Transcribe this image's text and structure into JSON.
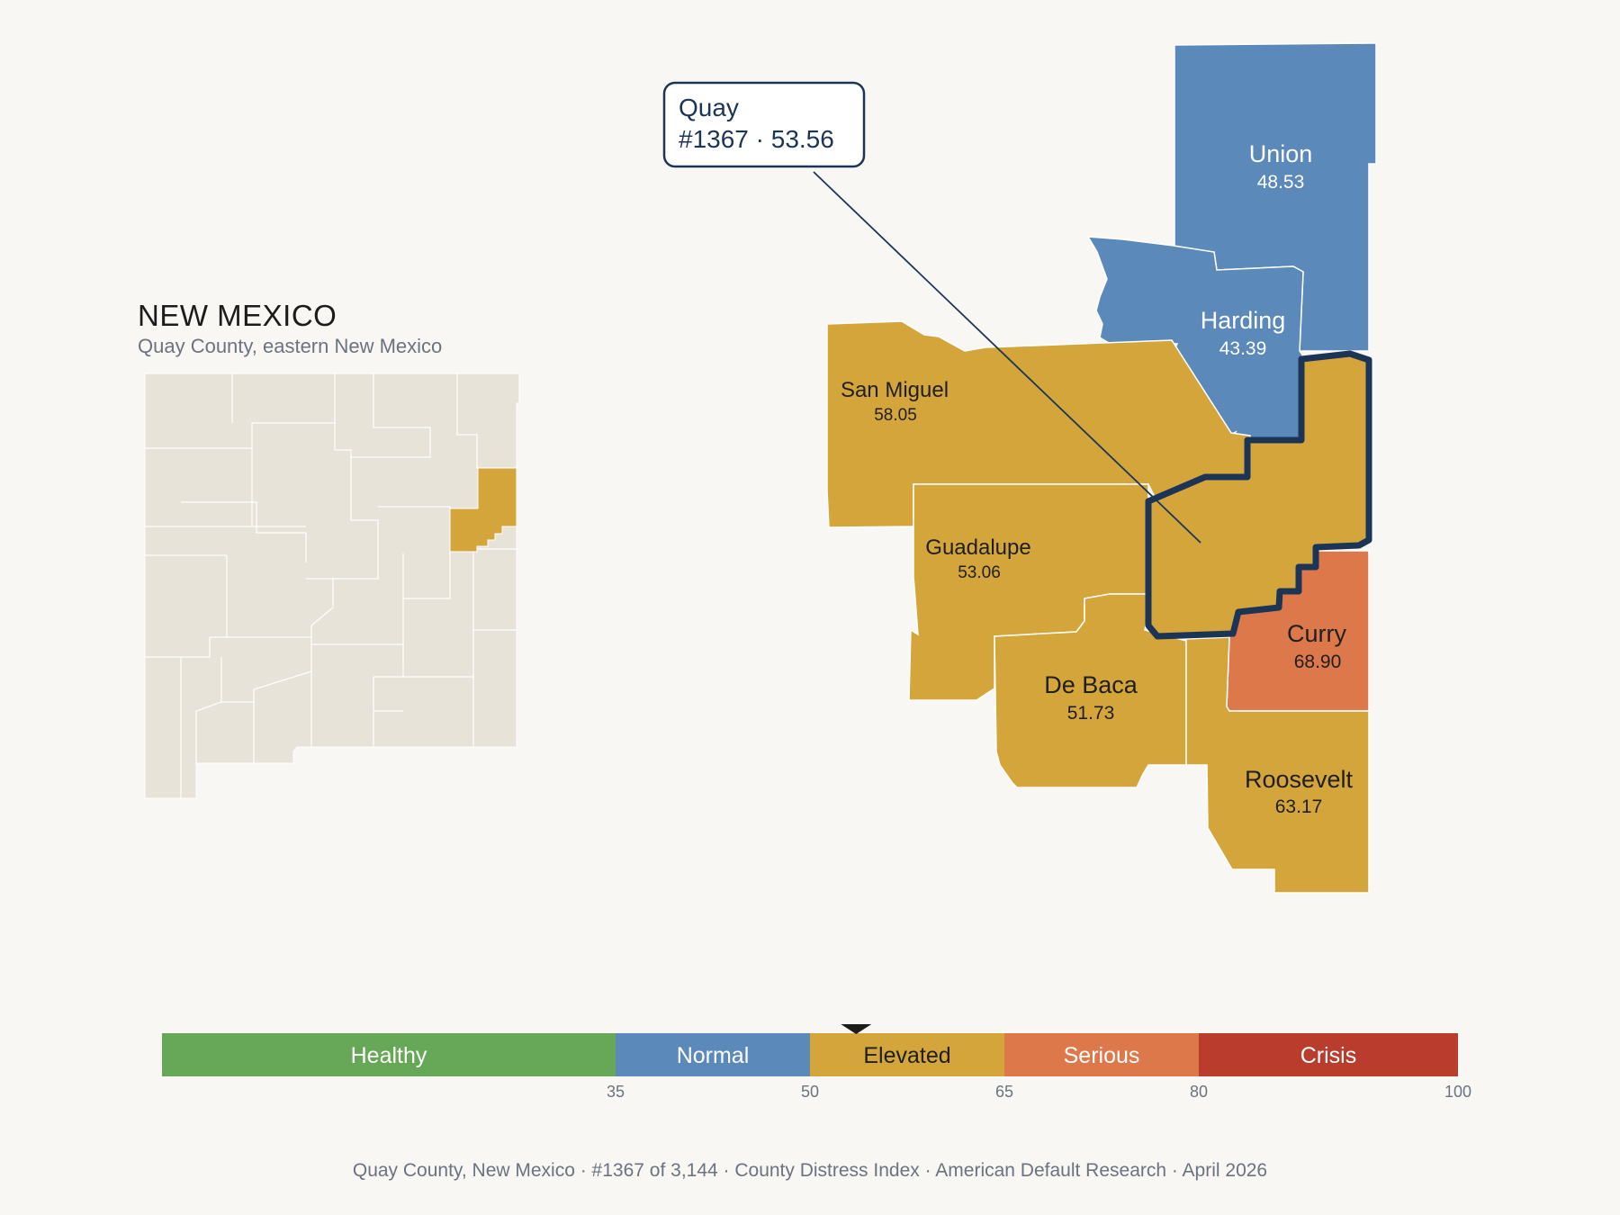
{
  "inset": {
    "title": "NEW MEXICO",
    "subtitle": "Quay County, eastern New Mexico"
  },
  "callout": {
    "county": "Quay",
    "detail": "#1367 · 53.56"
  },
  "counties": [
    {
      "name": "Union",
      "value": "48.53",
      "category": "Normal"
    },
    {
      "name": "Harding",
      "value": "43.39",
      "category": "Normal"
    },
    {
      "name": "San Miguel",
      "value": "58.05",
      "category": "Elevated"
    },
    {
      "name": "Guadalupe",
      "value": "53.06",
      "category": "Elevated"
    },
    {
      "name": "De Baca",
      "value": "51.73",
      "category": "Elevated"
    },
    {
      "name": "Curry",
      "value": "68.90",
      "category": "Serious"
    },
    {
      "name": "Roosevelt",
      "value": "63.17",
      "category": "Elevated"
    },
    {
      "name": "Quay",
      "value": "53.56",
      "category": "Elevated",
      "highlighted": true
    }
  ],
  "legend": {
    "bands": [
      {
        "label": "Healthy",
        "from": 0,
        "to": 35,
        "color": "#67a758"
      },
      {
        "label": "Normal",
        "from": 35,
        "to": 50,
        "color": "#5b89b9"
      },
      {
        "label": "Elevated",
        "from": 50,
        "to": 65,
        "color": "#d4a53a"
      },
      {
        "label": "Serious",
        "from": 65,
        "to": 80,
        "color": "#dd784a"
      },
      {
        "label": "Crisis",
        "from": 80,
        "to": 100,
        "color": "#b93c2c"
      }
    ],
    "ticks": [
      "35",
      "50",
      "65",
      "80",
      "100"
    ],
    "marker_value": 53.56
  },
  "colors": {
    "highlight_outline": "#1c3557",
    "inset_base": "#e8e3d9"
  },
  "footer": {
    "items": [
      "Quay County, New Mexico",
      "#1367 of 3,144",
      "County Distress Index",
      "American Default Research",
      "April 2026"
    ],
    "separator": "·"
  }
}
